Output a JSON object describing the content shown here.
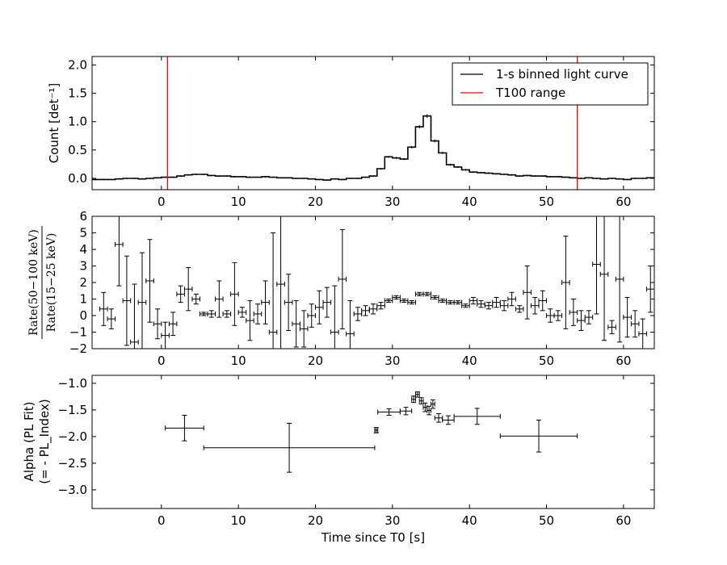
{
  "xlabel": "Time since T0 [s]",
  "x_ticks": [
    0,
    10,
    20,
    30,
    40,
    50,
    60
  ],
  "xlim": [
    -9,
    64
  ],
  "colors": {
    "curve": "#000000",
    "t100": "#ff0000",
    "frame": "#000000"
  },
  "chart_data": [
    {
      "type": "line",
      "panel": "light-curve",
      "ylabel": "Count [det⁻¹]",
      "ylim": [
        -0.2,
        2.15
      ],
      "y_ticks": [
        "0.0",
        "0.5",
        "1.0",
        "1.5",
        "2.0"
      ],
      "legend_position": "top-right",
      "legend": [
        {
          "label": "1-s binned light curve",
          "color": "#000000"
        },
        {
          "label": "T100 range",
          "color": "#ff0000"
        }
      ],
      "t100_range": [
        0.8,
        54.0
      ],
      "step_x": [
        -9,
        -8,
        -7,
        -6,
        -5,
        -4,
        -3,
        -2,
        -1,
        0,
        1,
        2,
        3,
        4,
        5,
        6,
        7,
        8,
        9,
        10,
        11,
        12,
        13,
        14,
        15,
        16,
        17,
        18,
        19,
        20,
        21,
        22,
        23,
        24,
        25,
        26,
        27,
        28,
        29,
        30,
        31,
        32,
        33,
        34,
        35,
        36,
        37,
        38,
        39,
        40,
        41,
        42,
        43,
        44,
        45,
        46,
        47,
        48,
        49,
        50,
        51,
        52,
        53,
        54,
        55,
        56,
        57,
        58,
        59,
        60,
        61,
        62,
        63,
        64
      ],
      "step_y": [
        -0.02,
        -0.02,
        -0.02,
        -0.01,
        0.0,
        0.0,
        -0.01,
        0.0,
        0.01,
        0.02,
        0.02,
        0.04,
        0.06,
        0.07,
        0.07,
        0.05,
        0.04,
        0.04,
        0.03,
        0.03,
        0.02,
        0.02,
        0.03,
        0.02,
        0.01,
        0.01,
        0.0,
        0.0,
        -0.01,
        -0.02,
        -0.03,
        -0.01,
        -0.02,
        0.0,
        0.0,
        0.02,
        0.04,
        0.17,
        0.38,
        0.36,
        0.34,
        0.55,
        0.91,
        1.1,
        0.66,
        0.45,
        0.24,
        0.2,
        0.15,
        0.11,
        0.1,
        0.09,
        0.08,
        0.07,
        0.06,
        0.04,
        0.05,
        0.04,
        0.04,
        0.03,
        0.03,
        0.02,
        0.01,
        0.0,
        0.01,
        0.0,
        -0.01,
        0.0,
        -0.01,
        -0.02,
        0.0,
        0.0,
        0.01
      ]
    },
    {
      "type": "scatter",
      "panel": "hardness-ratio",
      "ylabel": "Rate(50−100 keV) / Rate(15−25 keV)",
      "ylabel_numerator": "Rate(50−100 keV)",
      "ylabel_denominator": "Rate(15−25 keV)",
      "ylim": [
        -2,
        6
      ],
      "y_ticks": [
        "−2",
        "−1",
        "0",
        "1",
        "2",
        "3",
        "4",
        "5",
        "6"
      ],
      "points": [
        [
          -8,
          0.4,
          1.0
        ],
        [
          -7,
          -0.2,
          0.6
        ],
        [
          -6,
          4.3,
          2.5
        ],
        [
          -5,
          0.9,
          2.7
        ],
        [
          -4,
          -1.6,
          3.5
        ],
        [
          -3,
          0.8,
          3.0
        ],
        [
          -2,
          2.1,
          2.5
        ],
        [
          -1,
          -0.5,
          0.9
        ],
        [
          0,
          -1.2,
          0.8
        ],
        [
          1,
          -0.5,
          0.7
        ],
        [
          2,
          1.3,
          0.5
        ],
        [
          3,
          1.6,
          1.3
        ],
        [
          4,
          1.0,
          0.3
        ],
        [
          5,
          0.1,
          0.1
        ],
        [
          6,
          0.1,
          0.2
        ],
        [
          7,
          1.0,
          1.1
        ],
        [
          8,
          0.1,
          0.2
        ],
        [
          9,
          1.3,
          1.9
        ],
        [
          10,
          0.2,
          0.3
        ],
        [
          11,
          -0.3,
          1.2
        ],
        [
          12,
          0.1,
          0.6
        ],
        [
          13,
          0.8,
          1.3
        ],
        [
          14,
          -1.0,
          6.0
        ],
        [
          15,
          1.9,
          4.8
        ],
        [
          16,
          0.8,
          1.7
        ],
        [
          17,
          -0.5,
          1.4
        ],
        [
          18,
          -0.8,
          1.1
        ],
        [
          19,
          0.0,
          0.7
        ],
        [
          20,
          0.5,
          1.0
        ],
        [
          21,
          0.8,
          0.9
        ],
        [
          22,
          -1.0,
          2.8
        ],
        [
          23,
          2.2,
          3.0
        ],
        [
          24,
          -1.1,
          2.0
        ],
        [
          25,
          0.1,
          0.4
        ],
        [
          26,
          0.3,
          0.3
        ],
        [
          27,
          0.4,
          0.3
        ],
        [
          28,
          0.6,
          0.2
        ],
        [
          29,
          0.9,
          0.1
        ],
        [
          30,
          1.1,
          0.1
        ],
        [
          31,
          0.9,
          0.1
        ],
        [
          32,
          0.8,
          0.1
        ],
        [
          33,
          1.3,
          0.1
        ],
        [
          34,
          1.3,
          0.1
        ],
        [
          35,
          1.1,
          0.1
        ],
        [
          36,
          0.9,
          0.1
        ],
        [
          37,
          0.8,
          0.1
        ],
        [
          38,
          0.8,
          0.1
        ],
        [
          39,
          0.6,
          0.1
        ],
        [
          40,
          0.9,
          0.2
        ],
        [
          41,
          0.7,
          0.2
        ],
        [
          42,
          0.6,
          0.2
        ],
        [
          43,
          0.8,
          0.3
        ],
        [
          44,
          0.6,
          0.3
        ],
        [
          45,
          1.0,
          0.4
        ],
        [
          46,
          0.4,
          0.2
        ],
        [
          47,
          1.4,
          1.6
        ],
        [
          48,
          0.6,
          0.5
        ],
        [
          49,
          0.9,
          0.6
        ],
        [
          50,
          0.0,
          0.4
        ],
        [
          51,
          0.0,
          0.3
        ],
        [
          52,
          2.0,
          2.8
        ],
        [
          53,
          0.2,
          0.8
        ],
        [
          54,
          -0.3,
          0.6
        ],
        [
          55,
          -0.1,
          0.4
        ],
        [
          56,
          3.1,
          3.0
        ],
        [
          57,
          2.5,
          4.0
        ],
        [
          58,
          -0.7,
          0.4
        ],
        [
          59,
          2.2,
          3.8
        ],
        [
          60,
          -0.1,
          1.2
        ],
        [
          61,
          -0.5,
          0.8
        ],
        [
          62,
          -1.1,
          0.9
        ],
        [
          63,
          1.6,
          1.4
        ]
      ]
    },
    {
      "type": "scatter",
      "panel": "alpha",
      "ylabel": "Alpha (PL Fit)",
      "ylabel_line2": "(= - PL_Index)",
      "ylim": [
        -3.35,
        -0.85
      ],
      "y_ticks": [
        "−3.0",
        "−2.5",
        "−2.0",
        "−1.5",
        "−1.0"
      ],
      "points": [
        [
          0.5,
          5.5,
          -1.84,
          0.24
        ],
        [
          5.5,
          27.7,
          -2.21,
          0.46
        ],
        [
          27.7,
          28.1,
          -1.88,
          0.05
        ],
        [
          28.1,
          31.0,
          -1.54,
          0.06
        ],
        [
          31.0,
          32.5,
          -1.52,
          0.07
        ],
        [
          32.5,
          33.0,
          -1.3,
          0.06
        ],
        [
          33.0,
          33.5,
          -1.21,
          0.05
        ],
        [
          33.5,
          34.0,
          -1.33,
          0.06
        ],
        [
          34.0,
          34.5,
          -1.45,
          0.08
        ],
        [
          34.5,
          35.0,
          -1.51,
          0.08
        ],
        [
          35.0,
          35.5,
          -1.39,
          0.08
        ],
        [
          35.5,
          36.5,
          -1.65,
          0.08
        ],
        [
          36.5,
          38.0,
          -1.69,
          0.08
        ],
        [
          38.0,
          44.0,
          -1.62,
          0.15
        ],
        [
          44.0,
          54.0,
          -1.99,
          0.3
        ]
      ]
    }
  ]
}
